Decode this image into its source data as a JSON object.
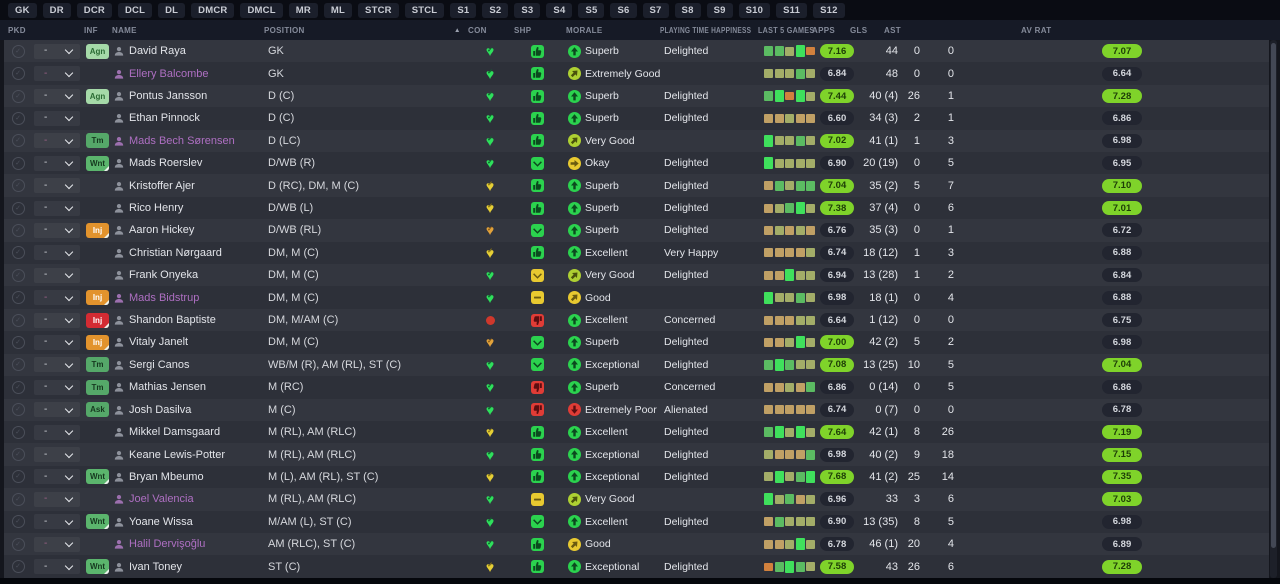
{
  "tabs": [
    "GK",
    "DR",
    "DCR",
    "DCL",
    "DL",
    "DMCR",
    "DMCL",
    "MR",
    "ML",
    "STCR",
    "STCL",
    "S1",
    "S2",
    "S3",
    "S4",
    "S5",
    "S6",
    "S7",
    "S8",
    "S9",
    "S10",
    "S11",
    "S12"
  ],
  "columns": {
    "pkd": "PKD",
    "inf": "INF",
    "name": "NAME",
    "position": "POSITION",
    "con": "CON",
    "shp": "SHP",
    "morale": "MORALE",
    "playing_time": "PLAYING TIME HAPPINESS",
    "last5": "LAST 5 GAMES",
    "apps": "APPS",
    "gls": "GLS",
    "ast": "AST",
    "avrat": "AV RAT"
  },
  "sort_glyph": "▲",
  "palette": {
    "row_even": "#33363f",
    "row_odd": "#2d3039",
    "header_bg": "#161a26",
    "header_text": "#858b9a",
    "topbar_bg": "#0a0c13",
    "tab_bg": "#1b1f2b",
    "tab_text": "#c9ccd4",
    "name_normal": "#e2e4e9",
    "name_loan": "#ae6fc2",
    "person_normal": "#8d919b",
    "person_loan": "#9c6fae",
    "con": {
      "g": "#2ee05c",
      "y": "#e6cf35",
      "o": "#e2a23b",
      "r": "#cf382c"
    },
    "icon_green": "#2bd24e",
    "icon_yellowgreen": "#aed032",
    "icon_yellow": "#e8c930",
    "icon_red": "#e03c36",
    "bars": {
      "G": "#3fe05c",
      "g": "#5bbb62",
      "p": "#a3ad68",
      "t": "#c0a065",
      "o": "#d2813d"
    },
    "pill_good_bg": "#7fd32a",
    "pill_good_text": "#1d3d07",
    "pill_dark_bg": "#222530",
    "pill_dark_text": "#d4d7dd",
    "badges": {
      "agn": {
        "label": "Agn",
        "bg": "#a5d9a8",
        "fg": "#2a6b34"
      },
      "tm": {
        "label": "Tm",
        "bg": "#55a869",
        "fg": "#16381f"
      },
      "wnt": {
        "label": "Wnt",
        "bg": "#5bb56d",
        "fg": "#16381f"
      },
      "inj_o": {
        "label": "Inj",
        "bg": "#e2932d",
        "fg": "#ffffff"
      },
      "inj_r": {
        "label": "Inj",
        "bg": "#d32b33",
        "fg": "#ffffff"
      },
      "ask": {
        "label": "Ask",
        "bg": "#55a869",
        "fg": "#16381f"
      }
    }
  },
  "players": [
    {
      "name": "David Raya",
      "loan": false,
      "badge": "agn",
      "pkd": "-",
      "position": "GK",
      "con": "g",
      "shp": {
        "t": "up",
        "c": "g"
      },
      "morale": {
        "label": "Superb",
        "tone": "g",
        "dir": "up"
      },
      "happiness": "Delighted",
      "bars": "ggpGo",
      "last5": "7.16",
      "last5_good": true,
      "apps": "44",
      "gls": "0",
      "ast": "0",
      "avrat": "7.07",
      "avrat_good": true
    },
    {
      "name": "Ellery Balcombe",
      "loan": true,
      "badge": null,
      "pkd": "-",
      "position": "GK",
      "con": "g",
      "shp": {
        "t": "up",
        "c": "g"
      },
      "morale": {
        "label": "Extremely Good",
        "tone": "yg",
        "dir": "upright"
      },
      "happiness": "",
      "bars": "pppgp",
      "last5": "6.84",
      "last5_good": false,
      "apps": "48",
      "gls": "0",
      "ast": "0",
      "avrat": "6.64",
      "avrat_good": false
    },
    {
      "name": "Pontus Jansson",
      "loan": false,
      "badge": "agn",
      "pkd": "-",
      "position": "D (C)",
      "con": "g",
      "shp": {
        "t": "up",
        "c": "g"
      },
      "morale": {
        "label": "Superb",
        "tone": "g",
        "dir": "up"
      },
      "happiness": "Delighted",
      "bars": "gGoGp",
      "last5": "7.44",
      "last5_good": true,
      "apps": "40 (4)",
      "gls": "26",
      "ast": "1",
      "avrat": "7.28",
      "avrat_good": true
    },
    {
      "name": "Ethan Pinnock",
      "loan": false,
      "badge": null,
      "pkd": "-",
      "position": "D (C)",
      "con": "g",
      "shp": {
        "t": "up",
        "c": "g"
      },
      "morale": {
        "label": "Superb",
        "tone": "g",
        "dir": "up"
      },
      "happiness": "Delighted",
      "bars": "ttptt",
      "last5": "6.60",
      "last5_good": false,
      "apps": "34 (3)",
      "gls": "2",
      "ast": "1",
      "avrat": "6.86",
      "avrat_good": false
    },
    {
      "name": "Mads Bech Sørensen",
      "loan": true,
      "badge": "tm",
      "pkd": "-",
      "position": "D (LC)",
      "con": "g",
      "shp": {
        "t": "up",
        "c": "g"
      },
      "morale": {
        "label": "Very Good",
        "tone": "yg",
        "dir": "upright"
      },
      "happiness": "",
      "bars": "Gppgp",
      "last5": "7.02",
      "last5_good": true,
      "apps": "41 (1)",
      "gls": "1",
      "ast": "3",
      "avrat": "6.98",
      "avrat_good": false
    },
    {
      "name": "Mads Roerslev",
      "loan": false,
      "badge": "wnt",
      "pkd": "-",
      "position": "D/WB (R)",
      "con": "g",
      "shp": {
        "t": "chev",
        "c": "g"
      },
      "morale": {
        "label": "Okay",
        "tone": "y",
        "dir": "right"
      },
      "happiness": "Delighted",
      "bars": "Gpppp",
      "last5": "6.90",
      "last5_good": false,
      "apps": "20 (19)",
      "gls": "0",
      "ast": "5",
      "avrat": "6.95",
      "avrat_good": false
    },
    {
      "name": "Kristoffer Ajer",
      "loan": false,
      "badge": null,
      "pkd": "-",
      "position": "D (RC), DM, M (C)",
      "con": "y",
      "shp": {
        "t": "up",
        "c": "g"
      },
      "morale": {
        "label": "Superb",
        "tone": "g",
        "dir": "up"
      },
      "happiness": "Delighted",
      "bars": "tgpgg",
      "last5": "7.04",
      "last5_good": true,
      "apps": "35 (2)",
      "gls": "5",
      "ast": "7",
      "avrat": "7.10",
      "avrat_good": true
    },
    {
      "name": "Rico Henry",
      "loan": false,
      "badge": null,
      "pkd": "-",
      "position": "D/WB (L)",
      "con": "y",
      "shp": {
        "t": "up",
        "c": "g"
      },
      "morale": {
        "label": "Superb",
        "tone": "g",
        "dir": "up"
      },
      "happiness": "Delighted",
      "bars": "tpgGp",
      "last5": "7.38",
      "last5_good": true,
      "apps": "37 (4)",
      "gls": "0",
      "ast": "6",
      "avrat": "7.01",
      "avrat_good": true
    },
    {
      "name": "Aaron Hickey",
      "loan": false,
      "badge": "inj_o",
      "pkd": "-",
      "position": "D/WB (RL)",
      "con": "o",
      "shp": {
        "t": "chev",
        "c": "g"
      },
      "morale": {
        "label": "Superb",
        "tone": "g",
        "dir": "up"
      },
      "happiness": "Delighted",
      "bars": "tptpt",
      "last5": "6.76",
      "last5_good": false,
      "apps": "35 (3)",
      "gls": "0",
      "ast": "1",
      "avrat": "6.72",
      "avrat_good": false
    },
    {
      "name": "Christian Nørgaard",
      "loan": false,
      "badge": null,
      "pkd": "-",
      "position": "DM, M (C)",
      "con": "y",
      "shp": {
        "t": "up",
        "c": "g"
      },
      "morale": {
        "label": "Excellent",
        "tone": "g",
        "dir": "up"
      },
      "happiness": "Very Happy",
      "bars": "ttttp",
      "last5": "6.74",
      "last5_good": false,
      "apps": "18 (12)",
      "gls": "1",
      "ast": "3",
      "avrat": "6.88",
      "avrat_good": false
    },
    {
      "name": "Frank Onyeka",
      "loan": false,
      "badge": null,
      "pkd": "-",
      "position": "DM, M (C)",
      "con": "g",
      "shp": {
        "t": "chev",
        "c": "y"
      },
      "morale": {
        "label": "Very Good",
        "tone": "yg",
        "dir": "upright"
      },
      "happiness": "Delighted",
      "bars": "ttGpp",
      "last5": "6.94",
      "last5_good": false,
      "apps": "13 (28)",
      "gls": "1",
      "ast": "2",
      "avrat": "6.84",
      "avrat_good": false
    },
    {
      "name": "Mads Bidstrup",
      "loan": true,
      "badge": "inj_o",
      "pkd": "-",
      "position": "DM, M (C)",
      "con": "g",
      "shp": {
        "t": "minus",
        "c": "y"
      },
      "morale": {
        "label": "Good",
        "tone": "y",
        "dir": "upright"
      },
      "happiness": "",
      "bars": "Gppgp",
      "last5": "6.98",
      "last5_good": false,
      "apps": "18 (1)",
      "gls": "0",
      "ast": "4",
      "avrat": "6.88",
      "avrat_good": false
    },
    {
      "name": "Shandon Baptiste",
      "loan": false,
      "badge": "inj_r",
      "pkd": "-",
      "position": "DM, M/AM (C)",
      "con": "r",
      "shp": {
        "t": "down",
        "c": "r"
      },
      "morale": {
        "label": "Excellent",
        "tone": "g",
        "dir": "up"
      },
      "happiness": "Concerned",
      "bars": "tttpp",
      "last5": "6.64",
      "last5_good": false,
      "apps": "1 (12)",
      "gls": "0",
      "ast": "0",
      "avrat": "6.75",
      "avrat_good": false
    },
    {
      "name": "Vitaly Janelt",
      "loan": false,
      "badge": "inj_o",
      "pkd": "-",
      "position": "DM, M (C)",
      "con": "o",
      "shp": {
        "t": "chev",
        "c": "g"
      },
      "morale": {
        "label": "Superb",
        "tone": "g",
        "dir": "up"
      },
      "happiness": "Delighted",
      "bars": "ttpGp",
      "last5": "7.00",
      "last5_good": true,
      "apps": "42 (2)",
      "gls": "5",
      "ast": "2",
      "avrat": "6.98",
      "avrat_good": false
    },
    {
      "name": "Sergi Canos",
      "loan": false,
      "badge": "tm",
      "pkd": "-",
      "position": "WB/M (R), AM (RL), ST (C)",
      "con": "g",
      "shp": {
        "t": "chev",
        "c": "g"
      },
      "morale": {
        "label": "Exceptional",
        "tone": "g",
        "dir": "up"
      },
      "happiness": "Delighted",
      "bars": "gGgpp",
      "last5": "7.08",
      "last5_good": true,
      "apps": "13 (25)",
      "gls": "10",
      "ast": "5",
      "avrat": "7.04",
      "avrat_good": true
    },
    {
      "name": "Mathias Jensen",
      "loan": false,
      "badge": "tm",
      "pkd": "-",
      "position": "M (RC)",
      "con": "g",
      "shp": {
        "t": "down",
        "c": "r"
      },
      "morale": {
        "label": "Superb",
        "tone": "g",
        "dir": "up"
      },
      "happiness": "Concerned",
      "bars": "ttptg",
      "last5": "6.86",
      "last5_good": false,
      "apps": "0 (14)",
      "gls": "0",
      "ast": "5",
      "avrat": "6.86",
      "avrat_good": false
    },
    {
      "name": "Josh Dasilva",
      "loan": false,
      "badge": "ask",
      "pkd": "-",
      "position": "M (C)",
      "con": "g",
      "shp": {
        "t": "down",
        "c": "r"
      },
      "morale": {
        "label": "Extremely Poor",
        "tone": "r",
        "dir": "down"
      },
      "happiness": "Alienated",
      "bars": "ttttt",
      "last5": "6.74",
      "last5_good": false,
      "apps": "0 (7)",
      "gls": "0",
      "ast": "0",
      "avrat": "6.78",
      "avrat_good": false
    },
    {
      "name": "Mikkel Damsgaard",
      "loan": false,
      "badge": null,
      "pkd": "-",
      "position": "M (RL), AM (RLC)",
      "con": "y",
      "shp": {
        "t": "up",
        "c": "g"
      },
      "morale": {
        "label": "Excellent",
        "tone": "g",
        "dir": "up"
      },
      "happiness": "Delighted",
      "bars": "gGpGp",
      "last5": "7.64",
      "last5_good": true,
      "apps": "42 (1)",
      "gls": "8",
      "ast": "26",
      "avrat": "7.19",
      "avrat_good": true
    },
    {
      "name": "Keane Lewis-Potter",
      "loan": false,
      "badge": null,
      "pkd": "-",
      "position": "M (RL), AM (RLC)",
      "con": "g",
      "shp": {
        "t": "up",
        "c": "g"
      },
      "morale": {
        "label": "Exceptional",
        "tone": "g",
        "dir": "up"
      },
      "happiness": "Delighted",
      "bars": "ptttg",
      "last5": "6.98",
      "last5_good": false,
      "apps": "40 (2)",
      "gls": "9",
      "ast": "18",
      "avrat": "7.15",
      "avrat_good": true
    },
    {
      "name": "Bryan Mbeumo",
      "loan": false,
      "badge": "wnt",
      "pkd": "-",
      "position": "M (L), AM (RL), ST (C)",
      "con": "y",
      "shp": {
        "t": "up",
        "c": "g"
      },
      "morale": {
        "label": "Exceptional",
        "tone": "g",
        "dir": "up"
      },
      "happiness": "Delighted",
      "bars": "pGpgG",
      "last5": "7.68",
      "last5_good": true,
      "apps": "41 (2)",
      "gls": "25",
      "ast": "14",
      "avrat": "7.35",
      "avrat_good": true
    },
    {
      "name": "Joel Valencia",
      "loan": true,
      "badge": null,
      "pkd": "-",
      "position": "M (RL), AM (RLC)",
      "con": "g",
      "shp": {
        "t": "minus",
        "c": "y"
      },
      "morale": {
        "label": "Very Good",
        "tone": "yg",
        "dir": "upright"
      },
      "happiness": "",
      "bars": "Gpgtp",
      "last5": "6.96",
      "last5_good": false,
      "apps": "33",
      "gls": "3",
      "ast": "6",
      "avrat": "7.03",
      "avrat_good": true
    },
    {
      "name": "Yoane Wissa",
      "loan": false,
      "badge": "wnt",
      "pkd": "-",
      "position": "M/AM (L), ST (C)",
      "con": "g",
      "shp": {
        "t": "chev",
        "c": "g"
      },
      "morale": {
        "label": "Excellent",
        "tone": "g",
        "dir": "up"
      },
      "happiness": "Delighted",
      "bars": "tgppp",
      "last5": "6.90",
      "last5_good": false,
      "apps": "13 (35)",
      "gls": "8",
      "ast": "5",
      "avrat": "6.98",
      "avrat_good": false
    },
    {
      "name": "Halil Dervişoğlu",
      "loan": true,
      "badge": null,
      "pkd": "-",
      "position": "AM (RLC), ST (C)",
      "con": "g",
      "shp": {
        "t": "up",
        "c": "g"
      },
      "morale": {
        "label": "Good",
        "tone": "y",
        "dir": "upright"
      },
      "happiness": "",
      "bars": "ttpGp",
      "last5": "6.78",
      "last5_good": false,
      "apps": "46 (1)",
      "gls": "20",
      "ast": "4",
      "avrat": "6.89",
      "avrat_good": false
    },
    {
      "name": "Ivan Toney",
      "loan": false,
      "badge": "wnt",
      "pkd": "-",
      "position": "ST (C)",
      "con": "y",
      "shp": {
        "t": "up",
        "c": "g"
      },
      "morale": {
        "label": "Exceptional",
        "tone": "g",
        "dir": "up"
      },
      "happiness": "Delighted",
      "bars": "ogGgp",
      "last5": "7.58",
      "last5_good": true,
      "apps": "43",
      "gls": "26",
      "ast": "6",
      "avrat": "7.28",
      "avrat_good": true
    }
  ]
}
